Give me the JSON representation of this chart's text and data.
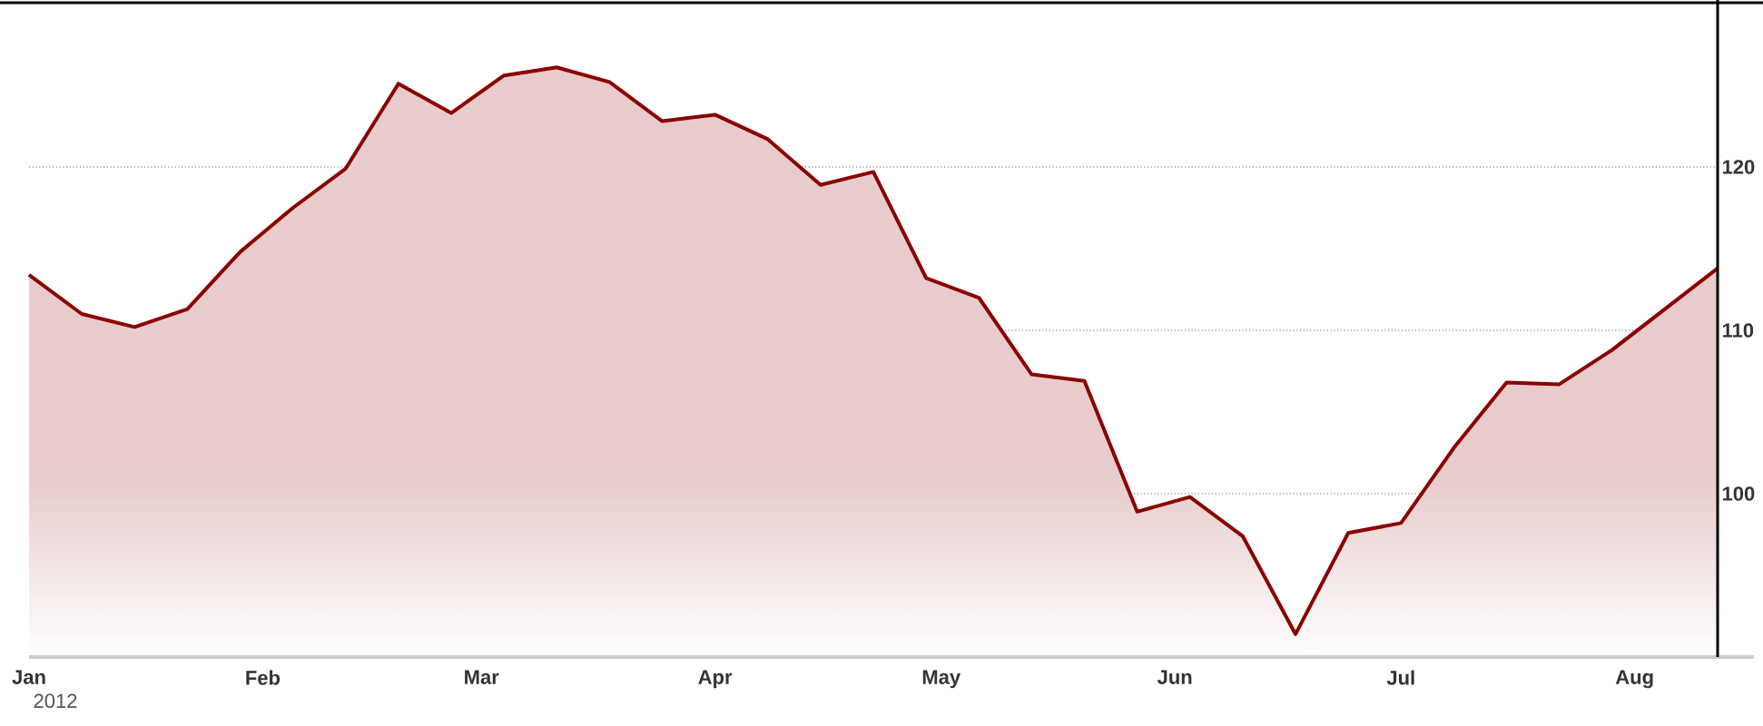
{
  "chart_data": {
    "type": "area",
    "x": [
      "2012-01-01",
      "2012-01-08",
      "2012-01-15",
      "2012-01-22",
      "2012-01-29",
      "2012-02-05",
      "2012-02-12",
      "2012-02-19",
      "2012-02-26",
      "2012-03-04",
      "2012-03-11",
      "2012-03-18",
      "2012-03-25",
      "2012-04-01",
      "2012-04-08",
      "2012-04-15",
      "2012-04-22",
      "2012-04-29",
      "2012-05-06",
      "2012-05-13",
      "2012-05-20",
      "2012-05-27",
      "2012-06-03",
      "2012-06-10",
      "2012-06-17",
      "2012-06-24",
      "2012-07-01",
      "2012-07-08",
      "2012-07-15",
      "2012-07-22",
      "2012-07-29",
      "2012-08-05",
      "2012-08-12"
    ],
    "values": [
      113.4,
      111.0,
      110.2,
      111.3,
      114.8,
      117.5,
      119.9,
      125.1,
      123.3,
      125.6,
      126.1,
      125.2,
      122.8,
      123.2,
      121.7,
      118.9,
      119.7,
      113.2,
      112.0,
      107.3,
      106.9,
      98.9,
      99.8,
      97.4,
      91.4,
      97.6,
      98.2,
      102.8,
      106.8,
      106.7,
      108.8,
      111.3,
      113.8
    ],
    "color": "#8b0000",
    "xlim": [
      "2012-01-01",
      "2012-08-12"
    ],
    "ylim": [
      90,
      130
    ],
    "xticks": [
      {
        "value": "2012-01-01",
        "label": "Jan"
      },
      {
        "value": "2012-02-01",
        "label": "Feb"
      },
      {
        "value": "2012-03-01",
        "label": "Mar"
      },
      {
        "value": "2012-04-01",
        "label": "Apr"
      },
      {
        "value": "2012-05-01",
        "label": "May"
      },
      {
        "value": "2012-06-01",
        "label": "Jun"
      },
      {
        "value": "2012-07-01",
        "label": "Jul"
      },
      {
        "value": "2012-08-01",
        "label": "Aug"
      }
    ],
    "yticks": [
      100,
      110,
      120
    ],
    "xlabel": "2012",
    "grid": "y"
  }
}
